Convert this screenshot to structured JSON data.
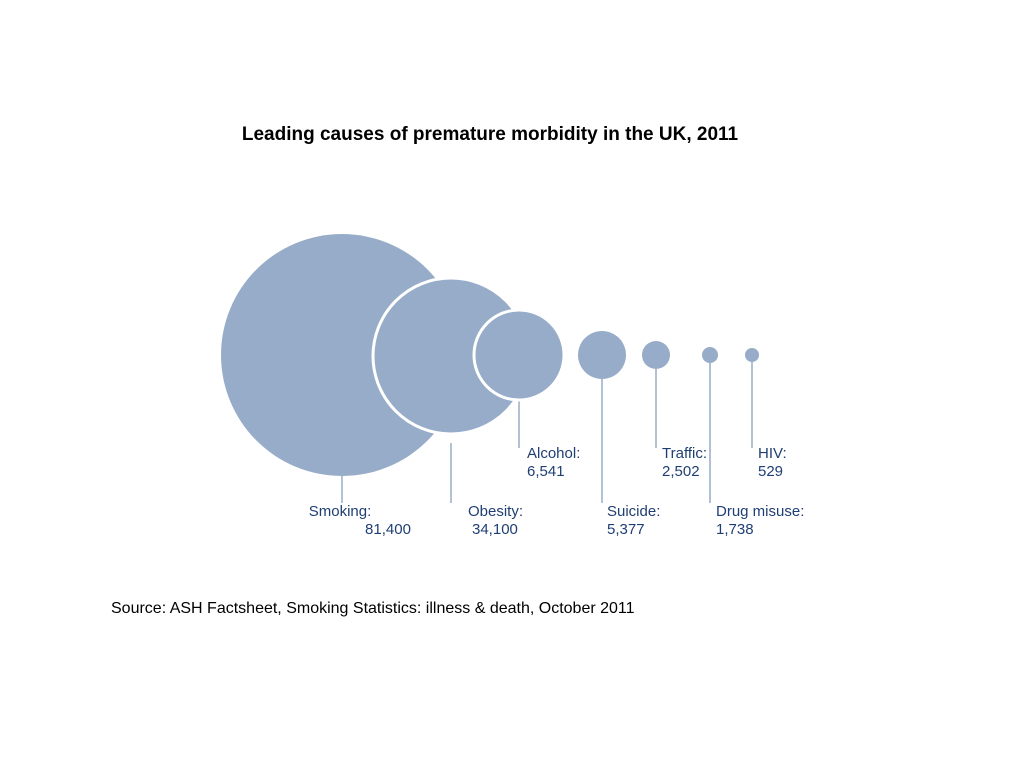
{
  "chart_data": {
    "type": "bubble",
    "title": "Leading causes of premature morbidity in the UK, 2011",
    "bubble_color": "#97ACC8",
    "label_color": "#1F3F73",
    "leader_color": "#97ACC8",
    "points": [
      {
        "name": "Smoking",
        "label": "Smoking:",
        "value": 81400,
        "value_label": "81,400"
      },
      {
        "name": "Obesity",
        "label": "Obesity:",
        "value": 34100,
        "value_label": "34,100"
      },
      {
        "name": "Alcohol",
        "label": "Alcohol:",
        "value": 6541,
        "value_label": "6,541"
      },
      {
        "name": "Suicide",
        "label": "Suicide:",
        "value": 5377,
        "value_label": "5,377"
      },
      {
        "name": "Traffic",
        "label": "Traffic:",
        "value": 2502,
        "value_label": "2,502"
      },
      {
        "name": "Drug misuse",
        "label": "Drug misuse:",
        "value": 1738,
        "value_label": "1,738"
      },
      {
        "name": "HIV",
        "label": "HIV:",
        "value": 529,
        "value_label": "529"
      }
    ]
  },
  "source": "Source: ASH Factsheet, Smoking Statistics: illness & death, October 2011"
}
